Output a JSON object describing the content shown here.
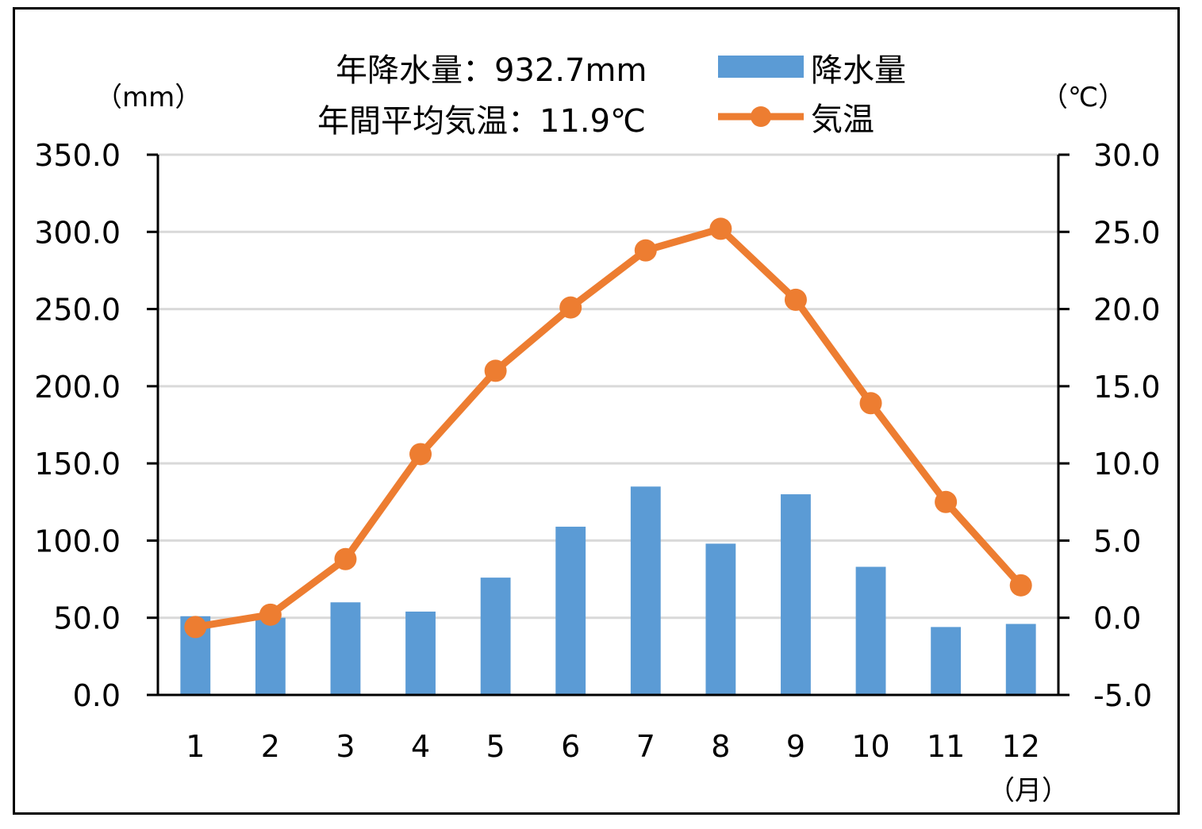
{
  "chart_data": {
    "type": "bar+line",
    "categories": [
      "1",
      "2",
      "3",
      "4",
      "5",
      "6",
      "7",
      "8",
      "9",
      "10",
      "11",
      "12"
    ],
    "series": [
      {
        "name": "降水量",
        "type": "bar",
        "axis": "left",
        "color": "#5B9BD5",
        "values": [
          51,
          50,
          60,
          54,
          76,
          109,
          135,
          98,
          130,
          83,
          44,
          46
        ]
      },
      {
        "name": "気温",
        "type": "line",
        "axis": "right",
        "color": "#ED7D31",
        "values": [
          -0.6,
          0.2,
          3.8,
          10.6,
          16.0,
          20.1,
          23.8,
          25.2,
          20.6,
          13.9,
          7.5,
          2.1
        ]
      }
    ],
    "y_left": {
      "unit": "（mm）",
      "min": 0,
      "max": 350,
      "step": 50,
      "ticks": [
        "0.0",
        "50.0",
        "100.0",
        "150.0",
        "200.0",
        "250.0",
        "300.0",
        "350.0"
      ]
    },
    "y_right": {
      "unit": "（℃）",
      "min": -5,
      "max": 30,
      "step": 5,
      "ticks": [
        "-5.0",
        "0.0",
        "5.0",
        "10.0",
        "15.0",
        "20.0",
        "25.0",
        "30.0"
      ]
    },
    "x_unit": "（月）",
    "grid": true,
    "legend_position": "top-center"
  },
  "annotations": {
    "annual_precip": "年降水量：932.7mm",
    "annual_temp": "年間平均気温：11.9℃"
  }
}
